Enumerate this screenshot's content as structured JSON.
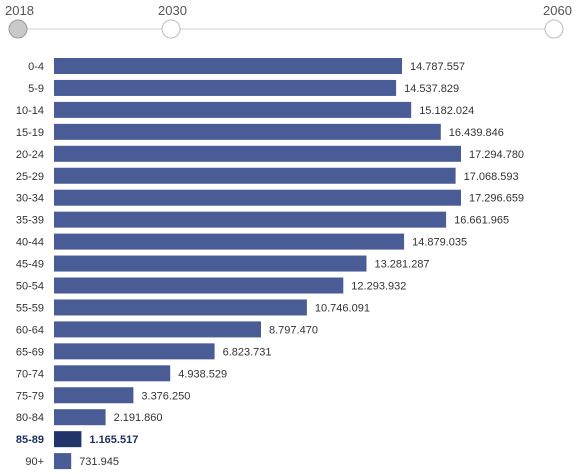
{
  "timeline": {
    "years": [
      "2018",
      "2030",
      "2060"
    ],
    "selected_index": 0
  },
  "colors": {
    "bar": "#4a5c95",
    "bar_highlight": "#22356a",
    "track": "#cfcfcf",
    "knob_selected": "#c9c9c9",
    "knob": "#ffffff"
  },
  "chart_data": {
    "type": "bar",
    "orientation": "horizontal",
    "categories": [
      "0-4",
      "5-9",
      "10-14",
      "15-19",
      "20-24",
      "25-29",
      "30-34",
      "35-39",
      "40-44",
      "45-49",
      "50-54",
      "55-59",
      "60-64",
      "65-69",
      "70-74",
      "75-79",
      "80-84",
      "85-89",
      "90+"
    ],
    "values": [
      14787557,
      14537829,
      15182024,
      16439846,
      17294780,
      17068593,
      17296659,
      16661965,
      14879035,
      13281287,
      12293932,
      10746091,
      8797470,
      6823731,
      4938529,
      3376250,
      2191860,
      1165517,
      731945
    ],
    "value_labels": [
      "14.787.557",
      "14.537.829",
      "15.182.024",
      "16.439.846",
      "17.294.780",
      "17.068.593",
      "17.296.659",
      "16.661.965",
      "14.879.035",
      "13.281.287",
      "12.293.932",
      "10.746.091",
      "8.797.470",
      "6.823.731",
      "4.938.529",
      "3.376.250",
      "2.191.860",
      "1.165.517",
      "731.945"
    ],
    "highlight_index": 17,
    "xlim": [
      0,
      17296659
    ],
    "title": "",
    "xlabel": "",
    "ylabel": "",
    "grid": false
  }
}
